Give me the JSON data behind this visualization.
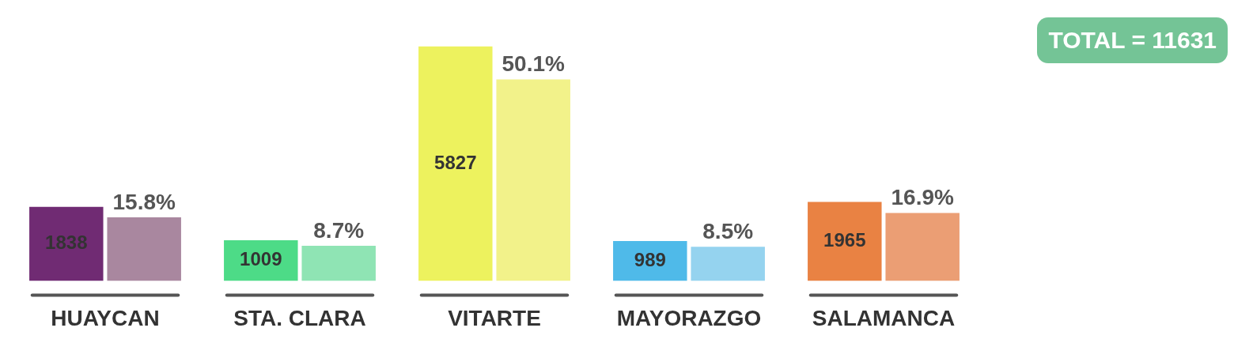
{
  "chart_data": {
    "type": "bar",
    "categories": [
      "HUAYCAN",
      "STA. CLARA",
      "VITARTE",
      "MAYORAZGO",
      "SALAMANCA"
    ],
    "series": [
      {
        "colors": [
          "#702b73",
          "#4ddb87",
          "#edf25e",
          "#4fbae9",
          "#e98243"
        ],
        "values": [
          1838,
          1009,
          5827,
          989,
          1965
        ]
      },
      {
        "axis": "y2",
        "colors": [
          "#a9879f",
          "#8fe4b4",
          "#f2f28a",
          "#95d3ef",
          "#eb9e74"
        ],
        "values": [
          15.8,
          8.7,
          50.1,
          8.5,
          16.9
        ],
        "value_labels": [
          "15.8%",
          "8.7%",
          "50.1%",
          "8.5%",
          "16.9%"
        ]
      }
    ],
    "data_labels": true,
    "tick_labels": "x",
    "grid": false,
    "legend": false,
    "annotations": [
      "TOTAL = 11631"
    ]
  }
}
